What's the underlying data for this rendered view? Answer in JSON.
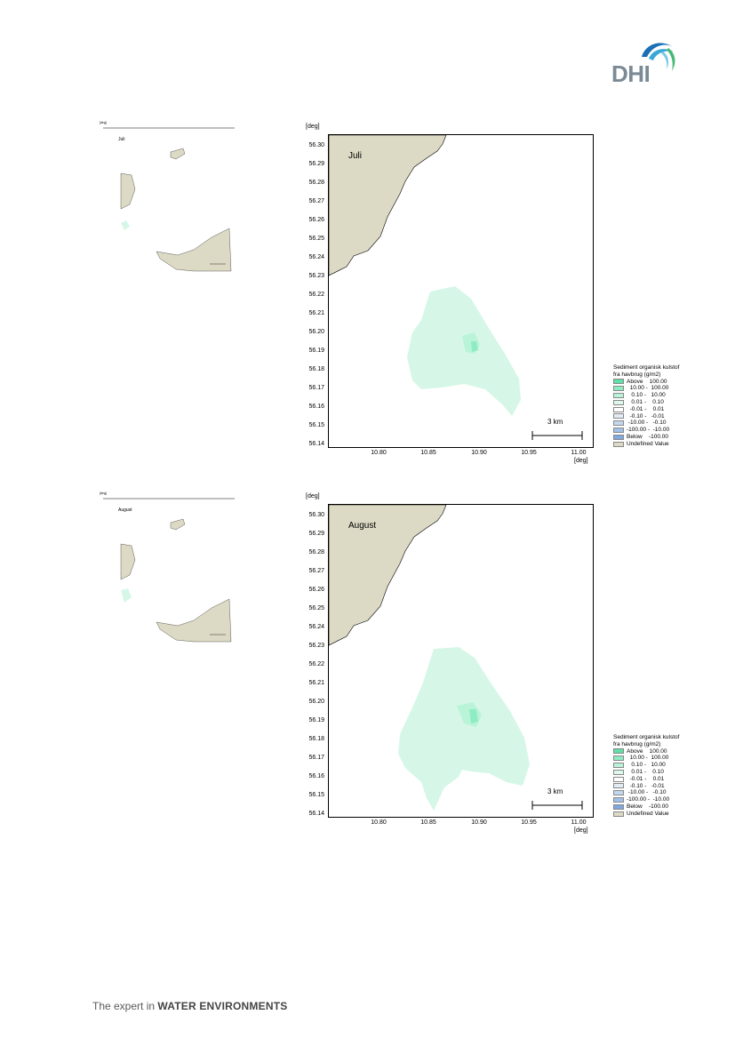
{
  "header": {
    "logo_text": "DHI",
    "brand_colors": [
      "#1a6fb5",
      "#3aa7d8",
      "#49b877"
    ]
  },
  "footer": {
    "prefix": "The expert in ",
    "emphasis": "WATER ENVIRONMENTS"
  },
  "maps": [
    {
      "month": "Juli",
      "unit_label": "[deg]",
      "y_ticks": [
        "56.30",
        "56.29",
        "56.28",
        "56.27",
        "56.26",
        "56.25",
        "56.24",
        "56.23",
        "56.22",
        "56.21",
        "56.20",
        "56.19",
        "56.18",
        "56.17",
        "56.16",
        "56.15",
        "56.14"
      ],
      "x_ticks": [
        "10.80",
        "10.85",
        "10.90",
        "10.95",
        "11.00"
      ],
      "scale_label": "3 km"
    },
    {
      "month": "August",
      "unit_label": "[deg]",
      "y_ticks": [
        "56.30",
        "56.29",
        "56.28",
        "56.27",
        "56.26",
        "56.25",
        "56.24",
        "56.23",
        "56.22",
        "56.21",
        "56.20",
        "56.19",
        "56.18",
        "56.17",
        "56.16",
        "56.15",
        "56.14"
      ],
      "x_ticks": [
        "10.80",
        "10.85",
        "10.90",
        "10.95",
        "11.00"
      ],
      "scale_label": "3 km"
    }
  ],
  "legend": {
    "title_line1": "Sediment organisk kulstof",
    "title_line2": "fra havbrug (g/m2)",
    "items": [
      {
        "label": "Above    100.00",
        "color": "#5fe0a8"
      },
      {
        "label": "  10.00 -  100.00",
        "color": "#8eecc2"
      },
      {
        "label": "   0.10 -   10.00",
        "color": "#b9f4d8"
      },
      {
        "label": "   0.01 -    0.10",
        "color": "#dcf9ec"
      },
      {
        "label": "  -0.01 -    0.01",
        "color": "#ffffff"
      },
      {
        "label": "  -0.10 -   -0.01",
        "color": "#e3ecf6"
      },
      {
        "label": " -10.00 -   -0.10",
        "color": "#c4d7ee"
      },
      {
        "label": "-100.00 -  -10.00",
        "color": "#a2c0e8"
      },
      {
        "label": "Below    -100.00",
        "color": "#7fa8e0"
      },
      {
        "label": "Undefined Value",
        "color": "#dcd9c4"
      }
    ]
  }
}
